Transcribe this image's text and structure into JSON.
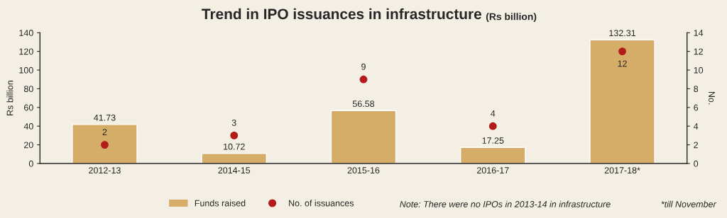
{
  "chart_data": {
    "type": "bar",
    "title": "Trend in IPO issuances in infrastructure",
    "subtitle": "(Rs billion)",
    "ylabel": "Rs billion",
    "y2label": "No.",
    "categories": [
      "2012-13",
      "2014-15",
      "2015-16",
      "2016-17",
      "2017-18*"
    ],
    "series": [
      {
        "name": "Funds raised",
        "color": "#d6ad68",
        "values": [
          41.73,
          10.72,
          56.58,
          17.25,
          132.31
        ]
      },
      {
        "name": "No. of issuances",
        "type": "scatter",
        "axis": "y2",
        "color": "#b31b1b",
        "values": [
          2,
          3,
          9,
          4,
          12
        ]
      }
    ],
    "ylim": [
      0,
      140
    ],
    "yticks": [
      0,
      20,
      40,
      60,
      80,
      100,
      120,
      140
    ],
    "y2lim": [
      0,
      14
    ],
    "y2ticks": [
      0,
      2,
      4,
      6,
      8,
      10,
      12,
      14
    ],
    "data_labels": true,
    "grid": false,
    "legend": "bottom",
    "marker": "circle",
    "annotations": [
      "Note: There were no IPOs in 2013-14 in infrastructure",
      "*till November"
    ]
  }
}
